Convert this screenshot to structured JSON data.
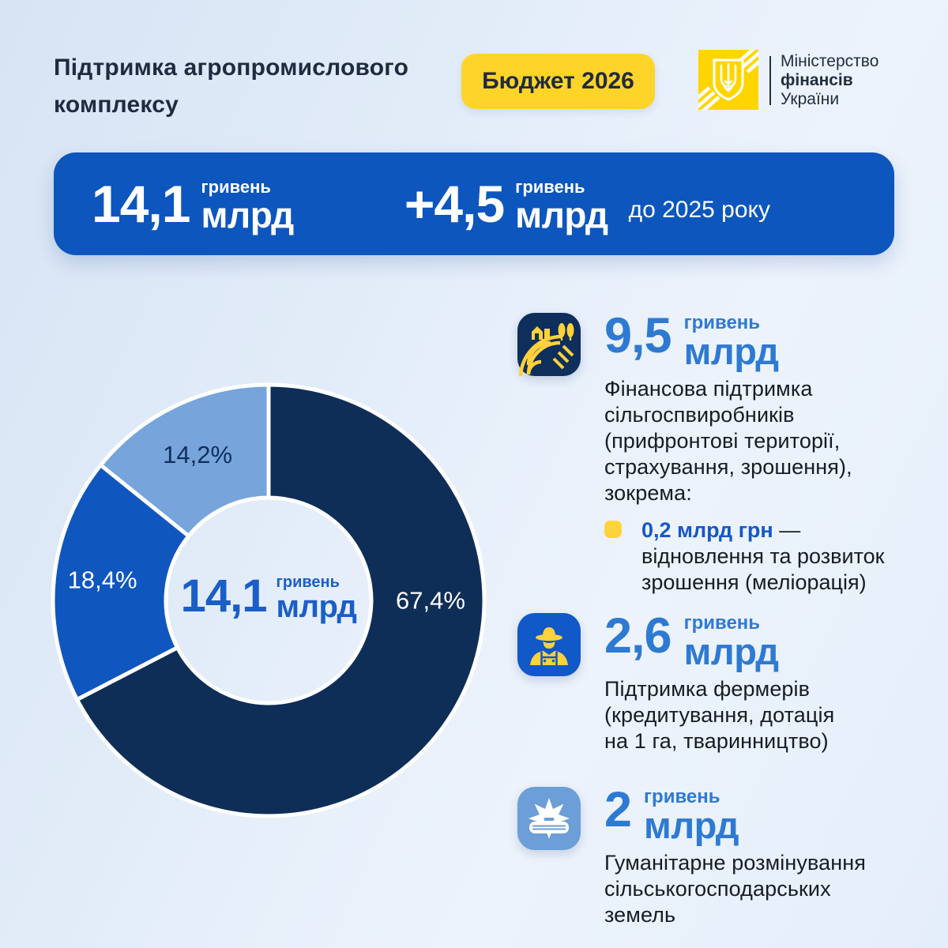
{
  "header": {
    "title": "Підтримка агропромислового\nкомплексу",
    "badge": "Бюджет 2026",
    "ministry": {
      "line1": "Міністерство",
      "line2": "фінансів",
      "line3": "України"
    }
  },
  "banner": {
    "total": {
      "value": "14,1",
      "unit_top": "гривень",
      "unit_bottom": "млрд"
    },
    "delta": {
      "value": "+4,5",
      "unit_top": "гривень",
      "unit_bottom": "млрд",
      "suffix": "до 2025 року"
    }
  },
  "chart_data": {
    "type": "pie",
    "subtype": "donut",
    "categories": [
      "Фінансова підтримка сільгоспвиробників",
      "Підтримка фермерів",
      "Гуманітарне розмінування"
    ],
    "values": [
      67.4,
      18.4,
      14.2
    ],
    "unit": "%",
    "total_label": "14,1 млрд гривень",
    "slices": [
      {
        "label": "67,4%",
        "value": 67.4,
        "color": "#0E2E57",
        "label_color": "#FFFFFF",
        "label_angle": 90,
        "label_radius": 205
      },
      {
        "label": "18,4%",
        "value": 18.4,
        "color": "#0F56BE",
        "label_color": "#FFFFFF",
        "label_angle": 277,
        "label_radius": 212
      },
      {
        "label": "14,2%",
        "value": 14.2,
        "color": "#76A4DB",
        "label_color": "#0E2F5B",
        "label_angle": 334,
        "label_radius": 205
      }
    ],
    "center_value": "14,1",
    "center_unit_top": "гривень",
    "center_unit_bottom": "млрд",
    "outer_radius": 273,
    "inner_radius": 130,
    "start_angle_deg": 0,
    "clockwise": true,
    "stroke_color": "#FFFFFF",
    "stroke_width": 5,
    "legend": "none"
  },
  "items": [
    {
      "icon": "field-icon",
      "value": "9,5",
      "unit_top": "гривень",
      "unit_bottom": "млрд",
      "description": "Фінансова підтримка\nсільгоспвиробників\n(прифронтові території,\nстрахування, зрошення),\nзокрема:",
      "sub_item": {
        "highlight": "0,2 млрд грн",
        "dash": "—",
        "text": "відновлення та розвиток\nзрошення (меліорація)"
      }
    },
    {
      "icon": "farmer-icon",
      "value": "2,6",
      "unit_top": "гривень",
      "unit_bottom": "млрд",
      "description": "Підтримка фермерів\n(кредитування, дотація\nна 1 га, тваринництво)"
    },
    {
      "icon": "mine-icon",
      "value": "2",
      "unit_top": "гривень",
      "unit_bottom": "млрд",
      "description": "Гуманітарне розмінування\nсільськогосподарських\nземель"
    }
  ],
  "colors": {
    "background_start": "#D7E4F4",
    "background_end": "#EDF3FC",
    "navy": "#0E2F5B",
    "royal_blue": "#0C56BE",
    "light_blue": "#6C9ED8",
    "accent_number_blue": "#2E7AD2",
    "center_text_blue": "#1A5EC8",
    "yellow": "#FFD429",
    "dark_text": "#1C2836"
  }
}
